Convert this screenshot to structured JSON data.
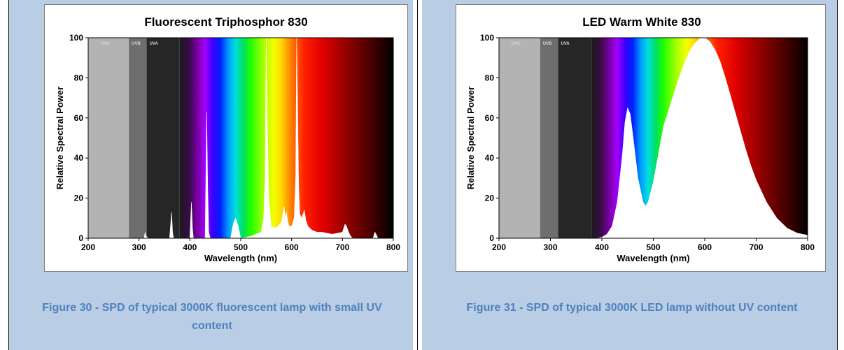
{
  "colors": {
    "cell_bg": "#b9cde5",
    "caption": "#4f81bd"
  },
  "figures": [
    {
      "caption": "Figure 30 - SPD of typical 3000K fluorescent lamp with small UV content"
    },
    {
      "caption": "Figure 31 - SPD of typical 3000K LED lamp without   UV content"
    }
  ],
  "chart_data": [
    {
      "type": "area",
      "title": "Fluorescent Triphosphor 830",
      "xlabel": "Wavelength (nm)",
      "ylabel": "Relative Spectral Power",
      "xlim": [
        200,
        800
      ],
      "ylim": [
        0,
        100
      ],
      "xticks": [
        200,
        300,
        400,
        500,
        600,
        700,
        800
      ],
      "yticks": [
        0,
        20,
        40,
        60,
        80,
        100
      ],
      "bands": [
        {
          "label": "UVC",
          "from": 200,
          "to": 280,
          "color": "#b3b3b3"
        },
        {
          "label": "UVB",
          "from": 280,
          "to": 315,
          "color": "#6e6e6e"
        },
        {
          "label": "UVA",
          "from": 315,
          "to": 380,
          "color": "#262626"
        }
      ],
      "x": [
        300,
        310,
        312,
        314,
        318,
        330,
        360,
        364,
        366,
        368,
        372,
        400,
        403,
        405,
        407,
        410,
        430,
        433,
        435,
        437,
        440,
        460,
        480,
        485,
        490,
        495,
        500,
        520,
        540,
        545,
        548,
        550,
        552,
        555,
        560,
        570,
        580,
        585,
        588,
        590,
        592,
        595,
        600,
        605,
        608,
        610,
        612,
        614,
        616,
        620,
        625,
        628,
        632,
        640,
        650,
        660,
        680,
        700,
        705,
        708,
        712,
        716,
        720,
        760,
        764,
        770,
        800
      ],
      "y": [
        0,
        0,
        3,
        1,
        0,
        0,
        0,
        13,
        3,
        0,
        0,
        0,
        18,
        5,
        0,
        0,
        0,
        63,
        25,
        3,
        0,
        0,
        0,
        7,
        10,
        6,
        0,
        1,
        3,
        10,
        30,
        100,
        60,
        20,
        6,
        5,
        8,
        16,
        10,
        13,
        9,
        6,
        6,
        10,
        30,
        100,
        60,
        25,
        12,
        10,
        14,
        9,
        6,
        4,
        3,
        3,
        2,
        3,
        7,
        6,
        3,
        1,
        0,
        0,
        3,
        0,
        0
      ]
    },
    {
      "type": "area",
      "title": "LED Warm White 830",
      "xlabel": "Wavelength (nm)",
      "ylabel": "Relative Spectral Power",
      "xlim": [
        200,
        800
      ],
      "ylim": [
        0,
        100
      ],
      "xticks": [
        200,
        300,
        400,
        500,
        600,
        700,
        800
      ],
      "yticks": [
        0,
        20,
        40,
        60,
        80,
        100
      ],
      "bands": [
        {
          "label": "UVC",
          "from": 200,
          "to": 280,
          "color": "#b3b3b3"
        },
        {
          "label": "UVB",
          "from": 280,
          "to": 315,
          "color": "#6e6e6e"
        },
        {
          "label": "UVA",
          "from": 315,
          "to": 380,
          "color": "#262626"
        }
      ],
      "x": [
        390,
        400,
        410,
        420,
        430,
        440,
        445,
        450,
        455,
        460,
        470,
        480,
        485,
        490,
        500,
        510,
        520,
        530,
        540,
        550,
        560,
        570,
        580,
        590,
        600,
        610,
        620,
        630,
        640,
        650,
        660,
        670,
        680,
        690,
        700,
        720,
        740,
        760,
        780,
        800
      ],
      "y": [
        0,
        0.5,
        2,
        6,
        18,
        42,
        58,
        65,
        62,
        52,
        30,
        18,
        16,
        18,
        28,
        42,
        56,
        64,
        72,
        80,
        87,
        93,
        97,
        99.5,
        100,
        98,
        94,
        88,
        80,
        71,
        62,
        53,
        44,
        36,
        29,
        18,
        10,
        5,
        2.5,
        1.5
      ]
    }
  ]
}
